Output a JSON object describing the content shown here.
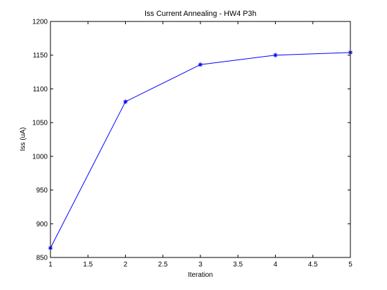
{
  "chart_data": {
    "type": "line",
    "title": "Iss Current Annealing - HW4 P3h",
    "xlabel": "Iteration",
    "ylabel": "Iss (uA)",
    "xlim": [
      1,
      5
    ],
    "ylim": [
      850,
      1200
    ],
    "xticks": [
      1,
      1.5,
      2,
      2.5,
      3,
      3.5,
      4,
      4.5,
      5
    ],
    "yticks": [
      850,
      900,
      950,
      1000,
      1050,
      1100,
      1150,
      1200
    ],
    "grid": false,
    "series": [
      {
        "color": "#0000ff",
        "marker": "asterisk",
        "x": [
          1,
          2,
          3,
          4,
          5
        ],
        "y": [
          864,
          1081,
          1136,
          1150,
          1154
        ]
      }
    ]
  }
}
